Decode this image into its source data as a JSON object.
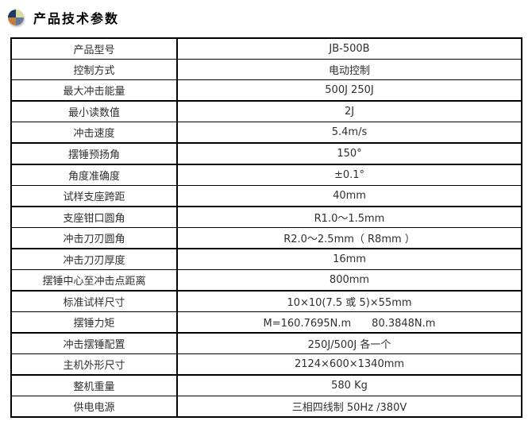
{
  "header": {
    "title": "产品技术参数",
    "icon": "pie-chart-icon",
    "icon_colors": {
      "top_left": "#1f3864",
      "top_right": "#d8db9b",
      "bottom_right": "#64789a",
      "bottom_left": "#bf803f"
    }
  },
  "table": {
    "border_color": "#000000",
    "rows": [
      {
        "label": "产品型号",
        "value": "JB-500B"
      },
      {
        "label": "控制方式",
        "value": "电动控制"
      },
      {
        "label": "最大冲击能量",
        "value": "500J 250J"
      },
      {
        "label": "最小读数值",
        "value": "2J"
      },
      {
        "label": "冲击速度",
        "value": "5.4m/s"
      },
      {
        "label": "摆锤预扬角",
        "value": "150°"
      },
      {
        "label": "角度准确度",
        "value": "±0.1°"
      },
      {
        "label": "试样支座跨距",
        "value": "40mm"
      },
      {
        "label": "支座钳口圆角",
        "value": "R1.0～1.5mm"
      },
      {
        "label": "冲击刀刃圆角",
        "value": "R2.0～2.5mm（ R8mm ）"
      },
      {
        "label": "冲击刀刃厚度",
        "value": "16mm"
      },
      {
        "label": "摆锤中心至冲击点距离",
        "value": "800mm"
      },
      {
        "label": "标准试样尺寸",
        "value": "10×10(7.5 或 5)×55mm"
      },
      {
        "label": "摆锤力矩",
        "value": "M=160.7695N.m　　80.3848N.m"
      },
      {
        "label": "冲击摆锤配置",
        "value": "250J/500J 各一个"
      },
      {
        "label": "主机外形尺寸",
        "value": "2124×600×1340mm"
      },
      {
        "label": "整机重量",
        "value": "580 Kg"
      },
      {
        "label": "供电电源",
        "value": "三相四线制 50Hz /380V"
      }
    ]
  }
}
